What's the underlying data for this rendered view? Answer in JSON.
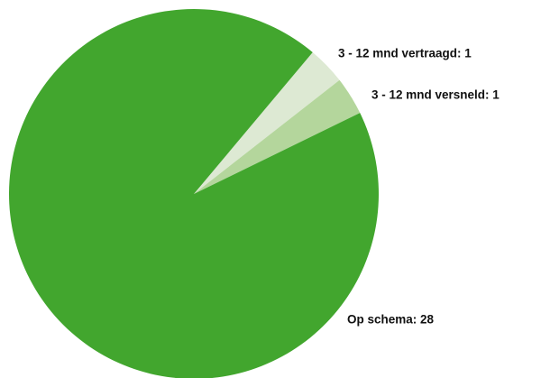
{
  "chart_data": {
    "type": "pie",
    "categories": [
      "3 - 12 mnd vertraagd: 1",
      "3 - 12 mnd versneld: 1",
      "Op schema: 28"
    ],
    "values": [
      1,
      1,
      28
    ],
    "colors": [
      "#dde9d3",
      "#b4d69c",
      "#42a62e"
    ]
  }
}
